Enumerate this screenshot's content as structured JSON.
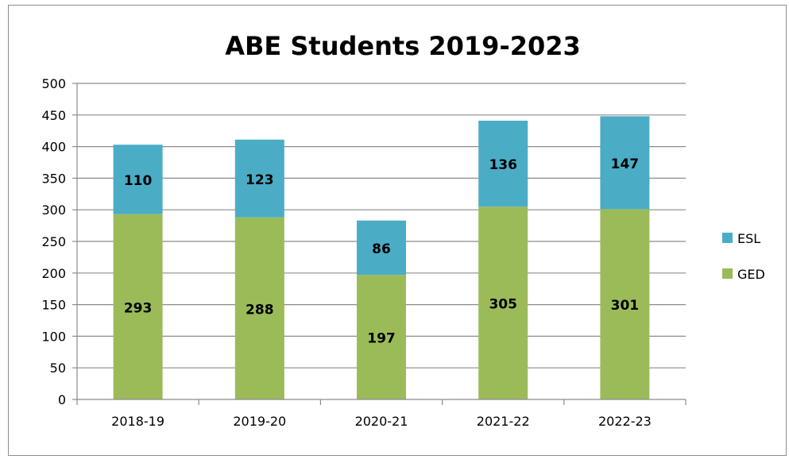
{
  "chart_data": {
    "type": "bar",
    "stacked": true,
    "title": "ABE Students 2019-2023",
    "xlabel": "",
    "ylabel": "",
    "categories": [
      "2018-19",
      "2019-20",
      "2020-21",
      "2021-22",
      "2022-23"
    ],
    "series": [
      {
        "name": "GED",
        "values": [
          293,
          288,
          197,
          305,
          301
        ],
        "color": "#9bbb59"
      },
      {
        "name": "ESL",
        "values": [
          110,
          123,
          86,
          136,
          147
        ],
        "color": "#4bacc6"
      }
    ],
    "ylim": [
      0,
      500
    ],
    "yticks": [
      0,
      50,
      100,
      150,
      200,
      250,
      300,
      350,
      400,
      450,
      500
    ],
    "grid": true,
    "legend": "right",
    "data_labels": true
  }
}
